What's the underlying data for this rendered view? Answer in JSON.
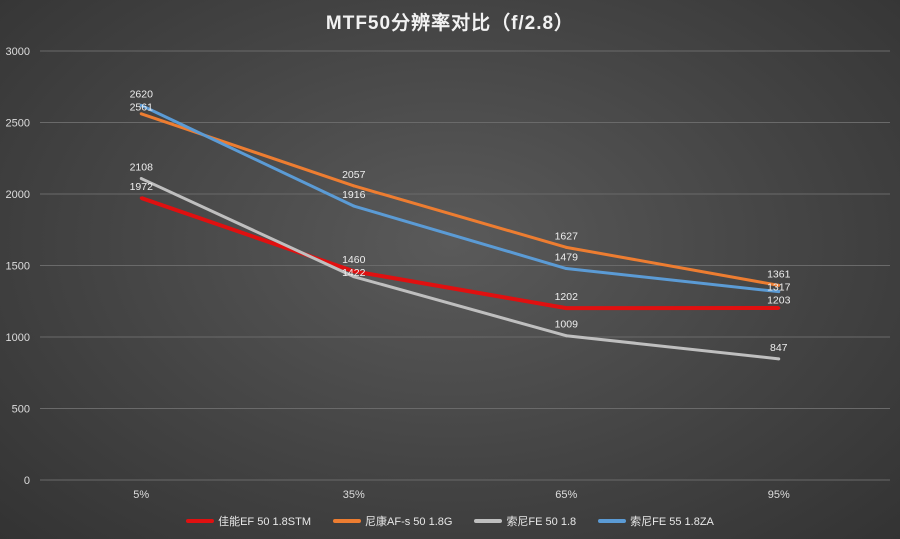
{
  "chart_data": {
    "type": "line",
    "title": "MTF50分辨率对比（f/2.8）",
    "categories": [
      "5%",
      "35%",
      "65%",
      "95%"
    ],
    "ylim": [
      0,
      3000
    ],
    "yticks": [
      0,
      500,
      1000,
      1500,
      2000,
      2500,
      3000
    ],
    "grid": true,
    "legend_position": "bottom",
    "series": [
      {
        "name": "佳能EF 50 1.8STM",
        "color": "#e01010",
        "values": [
          1972,
          1460,
          1202,
          1203
        ]
      },
      {
        "name": "尼康AF-s 50 1.8G",
        "color": "#ed7d31",
        "values": [
          2561,
          2057,
          1627,
          1361
        ]
      },
      {
        "name": "索尼FE 50 1.8",
        "color": "#bfbfbf",
        "values": [
          2108,
          1422,
          1009,
          847
        ]
      },
      {
        "name": "索尼FE 55 1.8ZA",
        "color": "#5b9bd5",
        "values": [
          2620,
          1916,
          1479,
          1317
        ]
      }
    ]
  }
}
